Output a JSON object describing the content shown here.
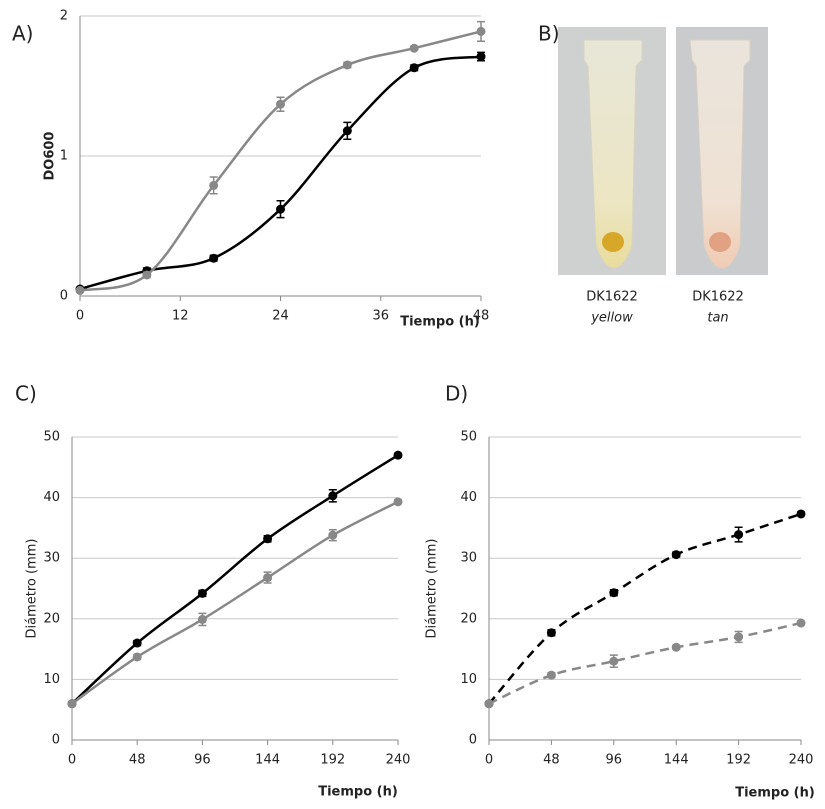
{
  "chart_data": [
    {
      "type": "line",
      "label": "A)",
      "y_label": "DO600",
      "x_label": "Tiempo (h)",
      "xlim": [
        0,
        48
      ],
      "xticks": [
        0,
        12,
        24,
        36,
        48
      ],
      "ylim": [
        0,
        2
      ],
      "yticks": [
        0,
        1,
        2
      ],
      "grid": true,
      "smooth": true,
      "dashed": false,
      "x": [
        0,
        8,
        16,
        24,
        32,
        40,
        48
      ],
      "series": [
        {
          "color": "#000000",
          "values": [
            0.05,
            0.18,
            0.27,
            0.62,
            1.18,
            1.63,
            1.71
          ],
          "errors": [
            0.01,
            0.02,
            0.02,
            0.06,
            0.06,
            0.02,
            0.03
          ]
        },
        {
          "color": "#888888",
          "values": [
            0.04,
            0.15,
            0.79,
            1.37,
            1.65,
            1.77,
            1.89
          ],
          "errors": [
            0.01,
            0.02,
            0.06,
            0.05,
            0.02,
            0.01,
            0.07
          ]
        }
      ]
    },
    {
      "type": "line",
      "label": "C)",
      "y_label": "Diámetro (mm)",
      "x_label": "Tiempo (h)",
      "xlim": [
        0,
        240
      ],
      "xticks": [
        0,
        48,
        96,
        144,
        192,
        240
      ],
      "ylim": [
        0,
        50
      ],
      "yticks": [
        0,
        10,
        20,
        30,
        40,
        50
      ],
      "grid": true,
      "smooth": true,
      "dashed": false,
      "x": [
        0,
        48,
        96,
        144,
        192,
        240
      ],
      "series": [
        {
          "color": "#000000",
          "values": [
            6,
            16,
            24.2,
            33.2,
            40.3,
            47
          ],
          "errors": [
            0.3,
            0.4,
            0.5,
            0.5,
            1,
            0.3
          ]
        },
        {
          "color": "#888888",
          "values": [
            6,
            13.7,
            19.9,
            26.8,
            33.8,
            39.3
          ],
          "errors": [
            0.3,
            0.4,
            1,
            0.9,
            0.9,
            0.3
          ]
        }
      ]
    },
    {
      "type": "line",
      "label": "D)",
      "y_label": "Diámetro (mm)",
      "x_label": "Tiempo (h)",
      "xlim": [
        0,
        240
      ],
      "xticks": [
        0,
        48,
        96,
        144,
        192,
        240
      ],
      "ylim": [
        0,
        50
      ],
      "yticks": [
        0,
        10,
        20,
        30,
        40,
        50
      ],
      "grid": true,
      "smooth": true,
      "dashed": true,
      "x": [
        0,
        48,
        96,
        144,
        192,
        240
      ],
      "series": [
        {
          "color": "#000000",
          "values": [
            6,
            17.7,
            24.3,
            30.6,
            33.9,
            37.3
          ],
          "errors": [
            0.3,
            0.5,
            0.5,
            0.4,
            1.2,
            0.3
          ]
        },
        {
          "color": "#888888",
          "values": [
            6,
            10.7,
            13,
            15.3,
            17,
            19.3
          ],
          "errors": [
            0.3,
            0.4,
            1,
            0.3,
            0.9,
            0.3
          ]
        }
      ]
    }
  ],
  "photo": {
    "label": "B)",
    "tubes": [
      {
        "name": "DK1622",
        "variant": "yellow"
      },
      {
        "name": "DK1622",
        "variant": "tan"
      }
    ]
  }
}
